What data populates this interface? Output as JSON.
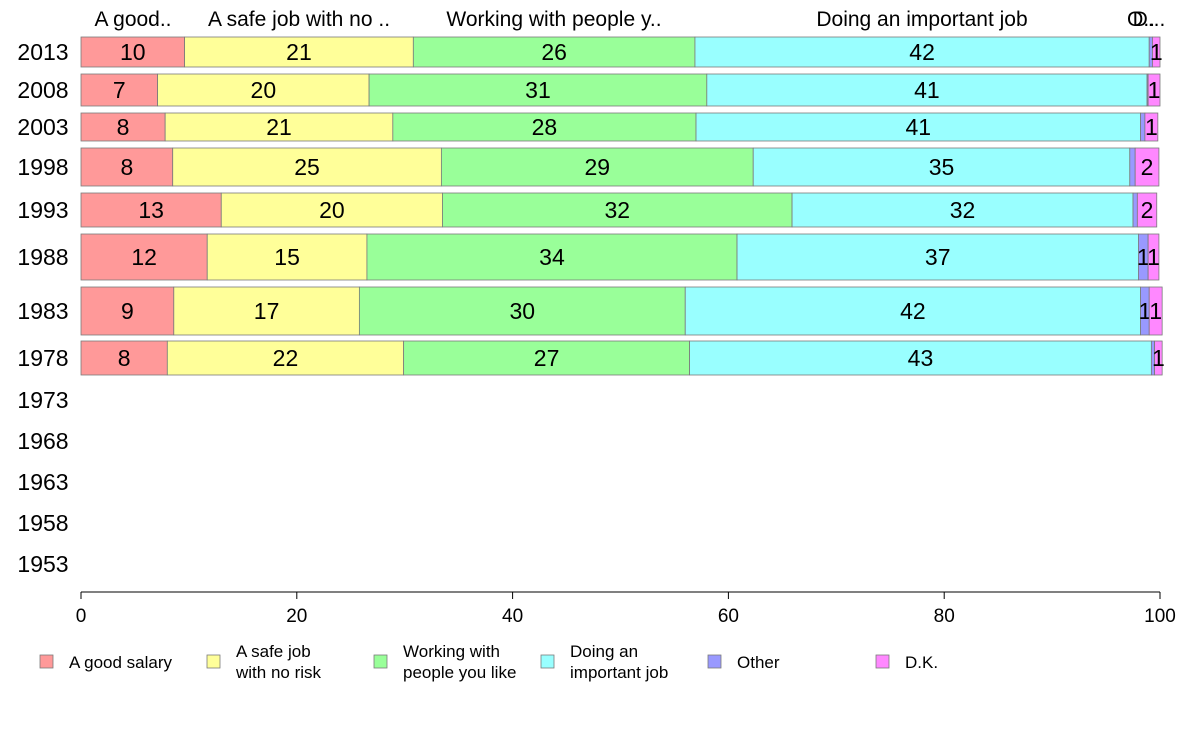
{
  "chart_data": {
    "type": "bar",
    "orientation": "horizontal",
    "stacked": true,
    "years": [
      "2013",
      "2008",
      "2003",
      "1998",
      "1993",
      "1988",
      "1983",
      "1978",
      "1973",
      "1968",
      "1963",
      "1958",
      "1953"
    ],
    "xlim": [
      0,
      100
    ],
    "xticks": [
      0,
      20,
      40,
      60,
      80,
      100
    ],
    "top_labels": [
      "A good..",
      "A safe job with no ..",
      "Working with people y..",
      "Doing an important job",
      "O..",
      "D..."
    ],
    "series": [
      {
        "name": "A good salary",
        "legend_label": [
          "A good salary"
        ],
        "color": "#ff9999",
        "values": [
          9.6,
          7.1,
          7.8,
          8.5,
          13.0,
          11.7,
          8.6,
          8.0,
          null,
          null,
          null,
          null,
          null
        ]
      },
      {
        "name": "A safe job with no risk",
        "legend_label": [
          "A safe job",
          "with no risk"
        ],
        "color": "#ffff99",
        "values": [
          21.2,
          19.6,
          21.1,
          24.9,
          20.5,
          14.8,
          17.2,
          21.9,
          null,
          null,
          null,
          null,
          null
        ]
      },
      {
        "name": "Working with people you like",
        "legend_label": [
          "Working with",
          "people you like"
        ],
        "color": "#99ff99",
        "values": [
          26.1,
          31.3,
          28.1,
          28.9,
          32.4,
          34.3,
          30.2,
          26.5,
          null,
          null,
          null,
          null,
          null
        ]
      },
      {
        "name": "Doing an important job",
        "legend_label": [
          "Doing an",
          "important job"
        ],
        "color": "#99ffff",
        "values": [
          42.1,
          40.8,
          41.2,
          34.9,
          31.6,
          37.2,
          42.2,
          42.8,
          null,
          null,
          null,
          null,
          null
        ]
      },
      {
        "name": "Other",
        "legend_label": [
          "Other"
        ],
        "color": "#9999ff",
        "values": [
          0.3,
          0.1,
          0.4,
          0.5,
          0.4,
          0.9,
          0.8,
          0.3,
          null,
          null,
          null,
          null,
          null
        ]
      },
      {
        "name": "D.K.",
        "legend_label": [
          "D.K."
        ],
        "color": "#ff88ff",
        "values": [
          0.7,
          1.1,
          1.2,
          2.2,
          1.8,
          1.0,
          1.2,
          0.7,
          null,
          null,
          null,
          null,
          null
        ]
      }
    ],
    "data_labels": [
      [
        "10",
        "21",
        "26",
        "42",
        "",
        "1"
      ],
      [
        "7",
        "20",
        "31",
        "41",
        "",
        "1"
      ],
      [
        "8",
        "21",
        "28",
        "41",
        "",
        "1"
      ],
      [
        "8",
        "25",
        "29",
        "35",
        "",
        "2"
      ],
      [
        "13",
        "20",
        "32",
        "32",
        "",
        "2"
      ],
      [
        "12",
        "15",
        "34",
        "37",
        "1",
        "1"
      ],
      [
        "9",
        "17",
        "30",
        "42",
        "1",
        "1"
      ],
      [
        "8",
        "22",
        "27",
        "43",
        "",
        "1"
      ]
    ],
    "legend_position": "bottom",
    "grid": false
  }
}
